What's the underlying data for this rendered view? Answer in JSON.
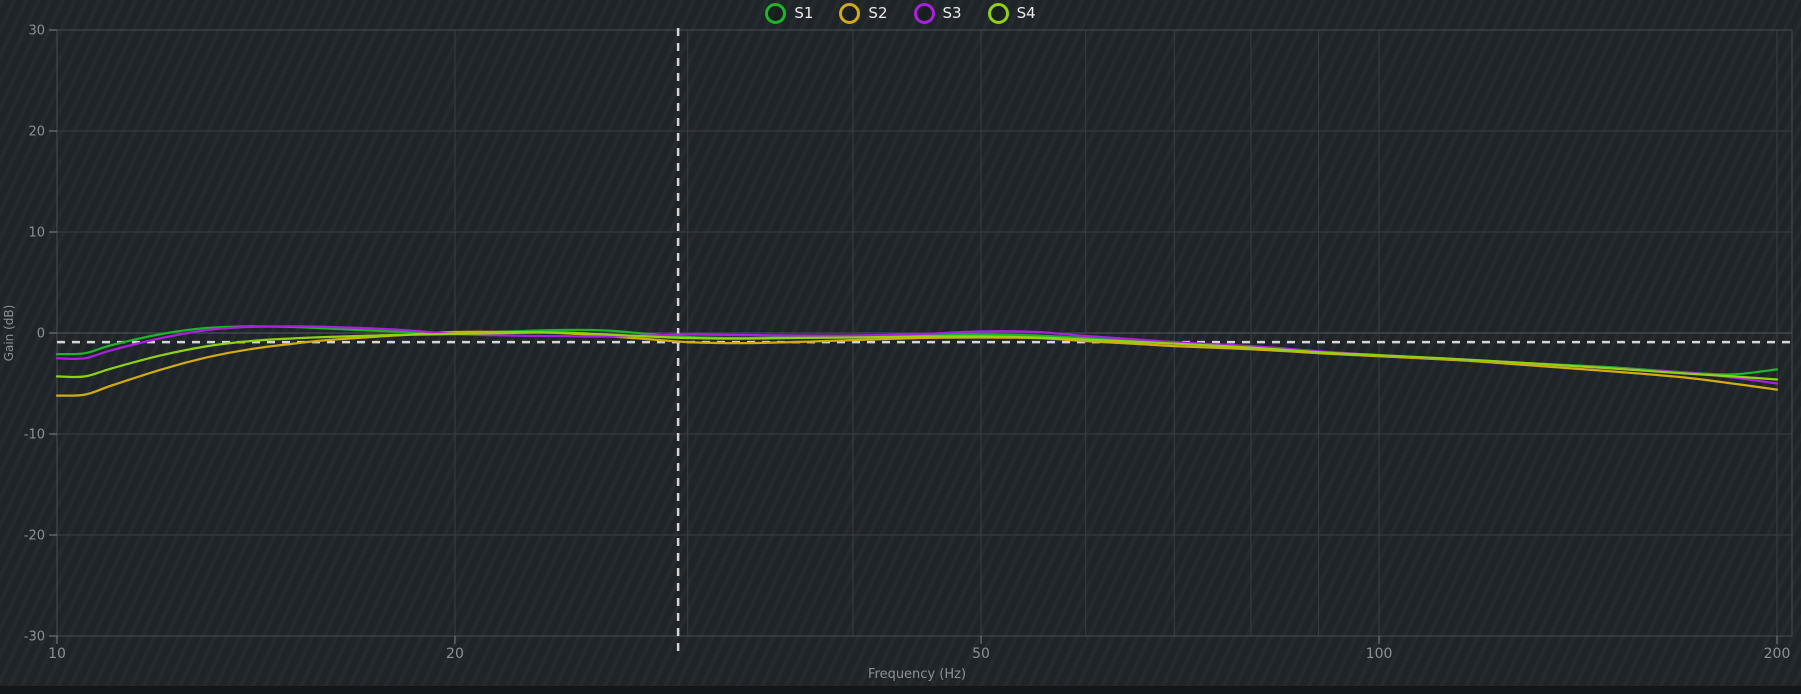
{
  "chart_data": {
    "type": "line",
    "title": "",
    "xlabel": "Frequency (Hz)",
    "ylabel": "Gain (dB)",
    "x_scale": "log",
    "xlim": [
      10,
      200
    ],
    "ylim": [
      -30,
      30
    ],
    "x_ticks": [
      10,
      20,
      50,
      100,
      200
    ],
    "y_ticks": [
      30,
      20,
      10,
      0,
      -10,
      -20,
      -30
    ],
    "x_gridlines": [
      20,
      30,
      40,
      50,
      60,
      70,
      80,
      90,
      100,
      200
    ],
    "grid": true,
    "legend_position": "top-center",
    "cursor": {
      "freq_hz": 29.5,
      "gain_db": -0.9
    },
    "x": [
      10,
      10.5,
      11,
      12,
      13,
      14,
      15,
      16,
      18,
      20,
      22,
      24,
      26,
      28,
      30,
      33,
      36,
      40,
      45,
      50,
      55,
      60,
      65,
      70,
      80,
      90,
      100,
      115,
      130,
      150,
      170,
      185,
      200
    ],
    "series": [
      {
        "name": "S1",
        "color": "#1db52a",
        "values": [
          -2.1,
          -2.0,
          -1.2,
          -0.1,
          0.5,
          0.65,
          0.6,
          0.45,
          0.15,
          0.0,
          0.15,
          0.3,
          0.25,
          -0.1,
          -0.4,
          -0.5,
          -0.4,
          -0.3,
          -0.15,
          -0.15,
          -0.25,
          -0.5,
          -0.7,
          -0.95,
          -1.4,
          -1.9,
          -2.2,
          -2.6,
          -3.0,
          -3.4,
          -3.9,
          -4.1,
          -3.6
        ]
      },
      {
        "name": "S2",
        "color": "#d2ab12",
        "values": [
          -6.2,
          -6.1,
          -5.2,
          -3.6,
          -2.4,
          -1.6,
          -1.1,
          -0.7,
          -0.25,
          0.1,
          0.1,
          0.0,
          -0.3,
          -0.6,
          -0.9,
          -1.0,
          -0.9,
          -0.7,
          -0.5,
          -0.45,
          -0.5,
          -0.8,
          -1.05,
          -1.3,
          -1.6,
          -2.0,
          -2.3,
          -2.7,
          -3.2,
          -3.8,
          -4.4,
          -5.0,
          -5.6
        ]
      },
      {
        "name": "S3",
        "color": "#a822dd",
        "values": [
          -2.5,
          -2.5,
          -1.7,
          -0.5,
          0.3,
          0.6,
          0.65,
          0.6,
          0.35,
          -0.1,
          -0.25,
          -0.3,
          -0.35,
          -0.25,
          -0.15,
          -0.2,
          -0.25,
          -0.25,
          -0.1,
          0.15,
          0.1,
          -0.3,
          -0.6,
          -0.9,
          -1.3,
          -1.8,
          -2.2,
          -2.6,
          -3.0,
          -3.5,
          -3.9,
          -4.4,
          -5.0
        ]
      },
      {
        "name": "S4",
        "color": "#8fd214",
        "values": [
          -4.3,
          -4.3,
          -3.5,
          -2.2,
          -1.3,
          -0.8,
          -0.55,
          -0.4,
          -0.2,
          -0.1,
          0.0,
          0.05,
          -0.15,
          -0.35,
          -0.5,
          -0.55,
          -0.5,
          -0.45,
          -0.35,
          -0.35,
          -0.45,
          -0.65,
          -0.85,
          -1.05,
          -1.45,
          -1.9,
          -2.2,
          -2.6,
          -3.0,
          -3.5,
          -4.0,
          -4.3,
          -4.6
        ]
      }
    ]
  },
  "colors": {
    "background": "#1f2429",
    "grid_minor": "#3a3f44",
    "grid_zero": "#53585d",
    "axis_border": "#474c51",
    "tick": "#7d8287",
    "tick_label": "#8c9196",
    "cursor_dash": "#d4d6d8",
    "legend_text": "#e9ebed"
  }
}
